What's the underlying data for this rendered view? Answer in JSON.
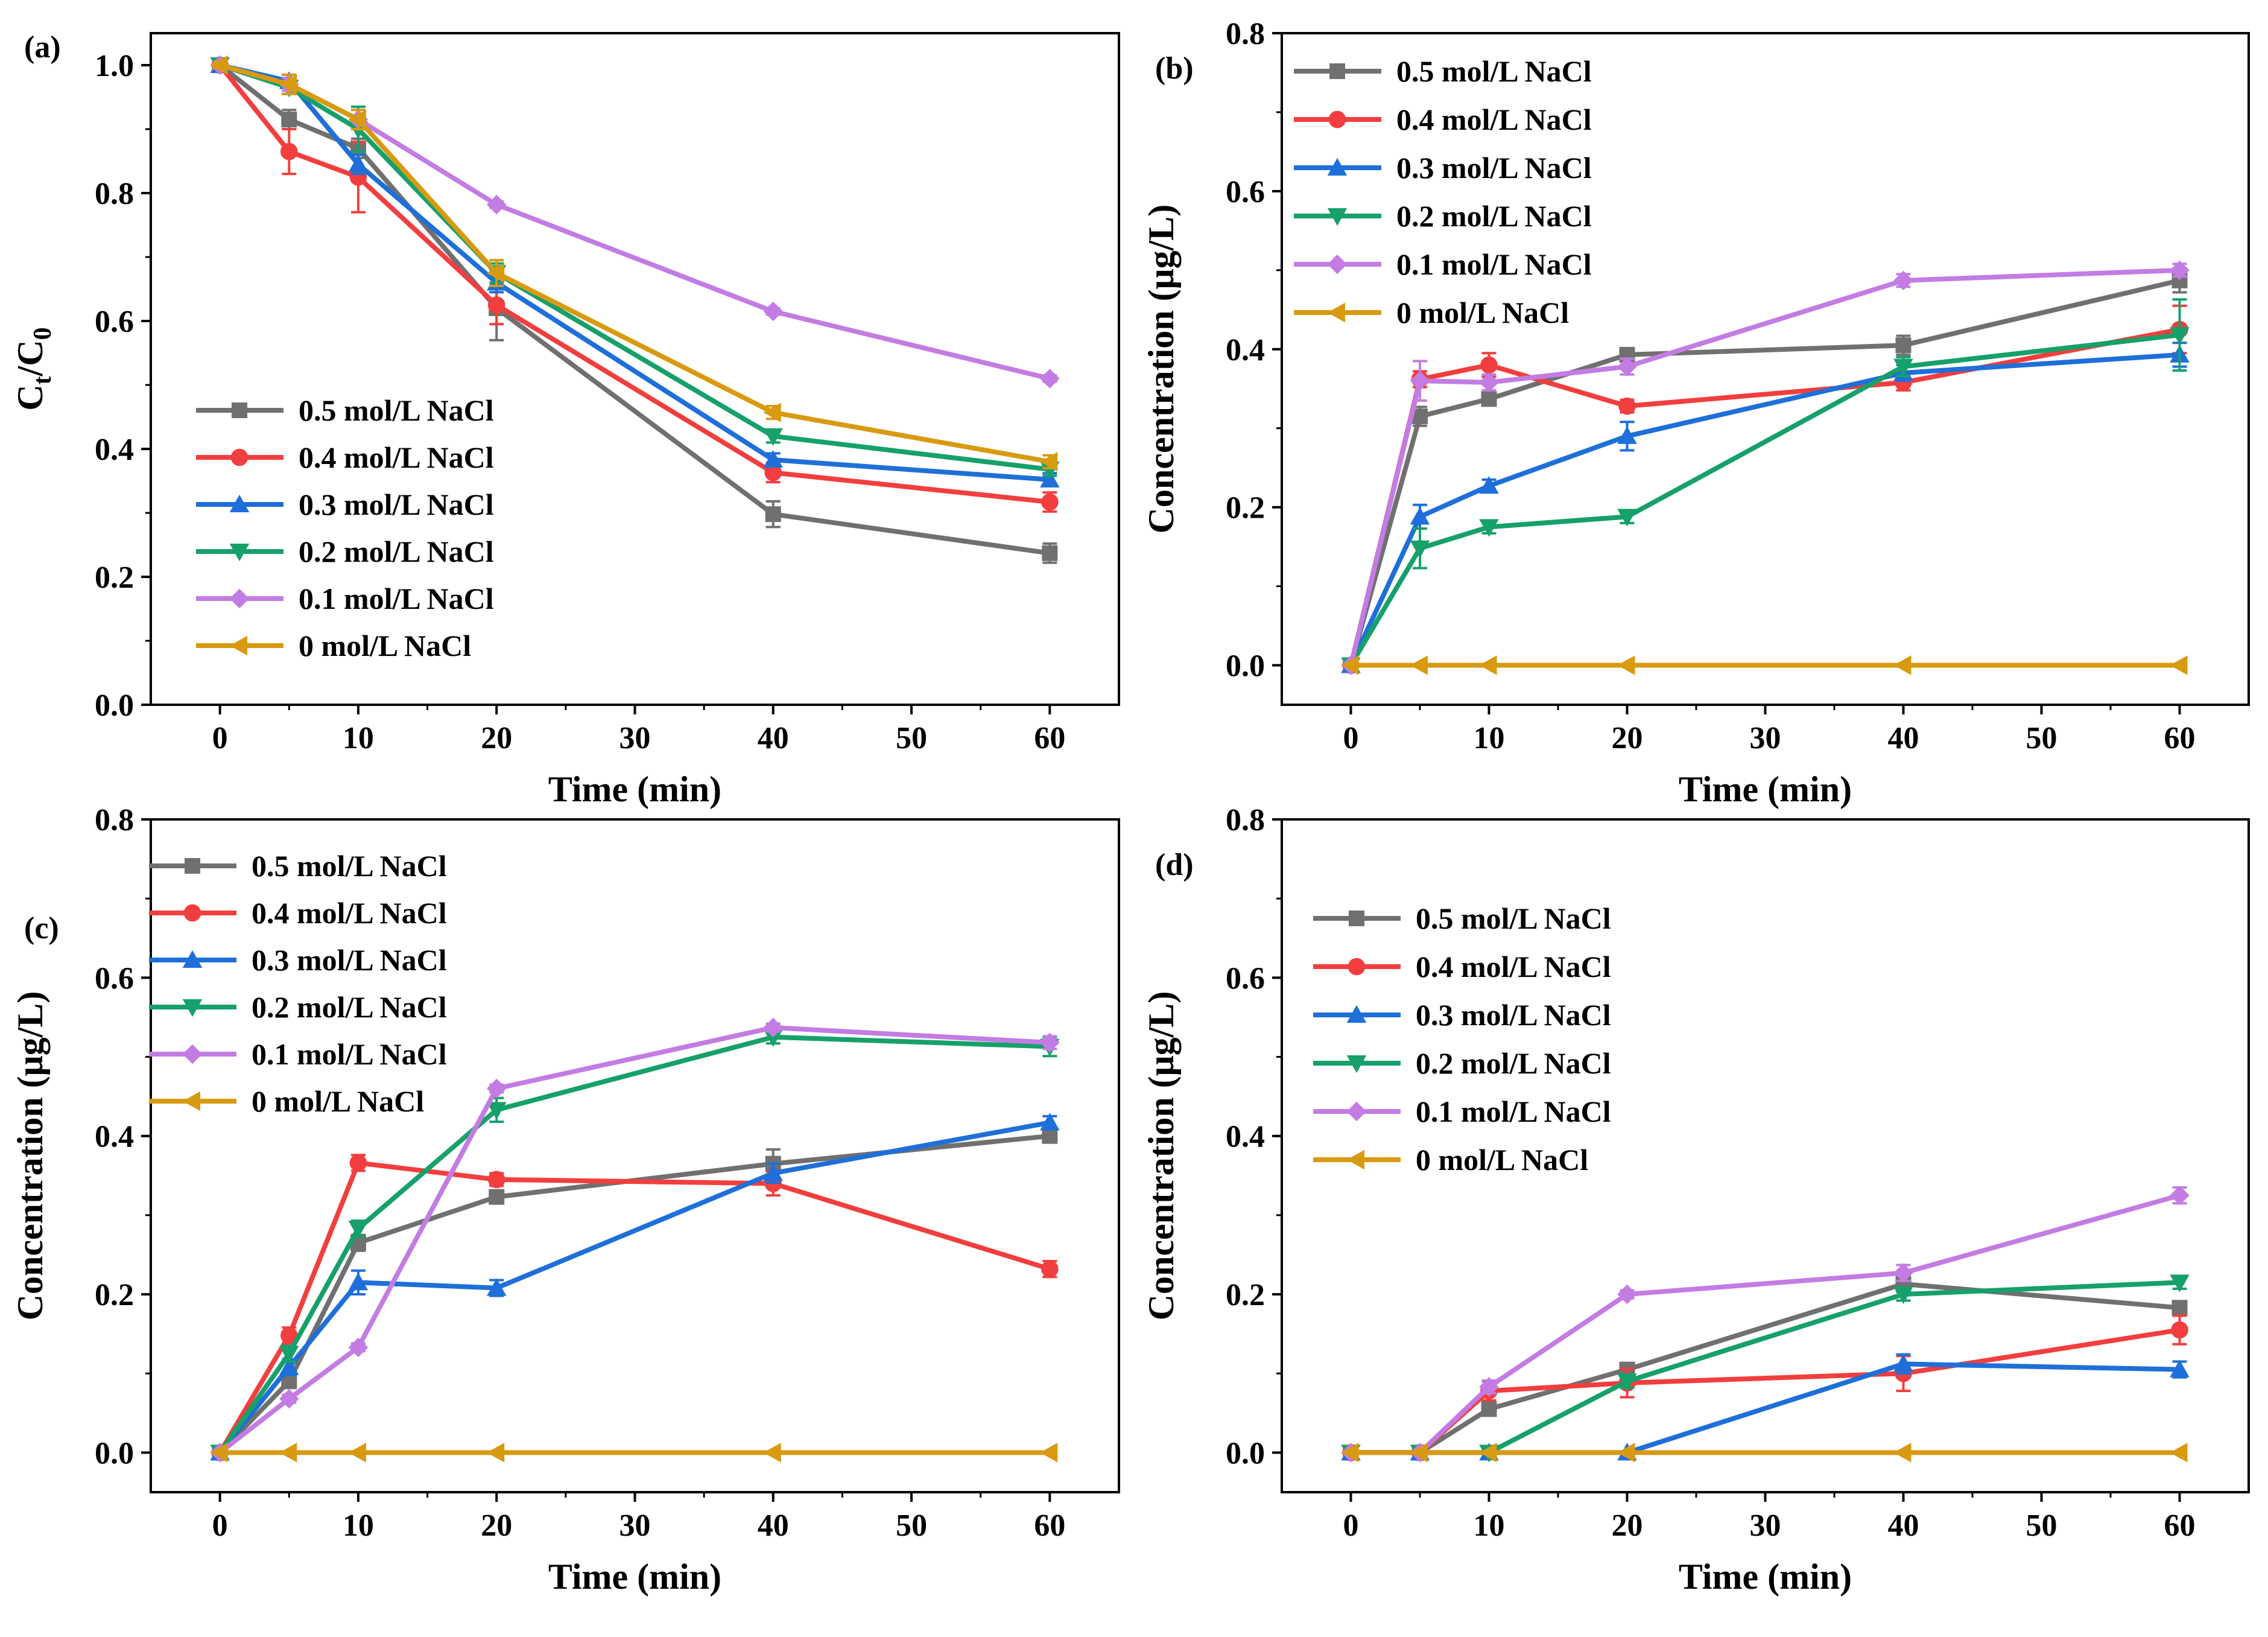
{
  "figure": {
    "colors": {
      "0.5": "#707070",
      "0.4": "#f23e3e",
      "0.3": "#1e6fd9",
      "0.2": "#16a06a",
      "0.1": "#c37ce3",
      "0": "#d89a10"
    }
  },
  "chart_data": [
    {
      "panel": "(a)",
      "type": "line",
      "xlabel": "Time (min)",
      "ylabel_main": "C",
      "ylabel_sub1": "t",
      "ylabel_sep": "/C",
      "ylabel_sub2": "0",
      "xlim": [
        -5,
        65
      ],
      "ylim": [
        0,
        1.05
      ],
      "xticks": [
        0,
        10,
        20,
        30,
        40,
        50,
        60
      ],
      "yticks": [
        0.0,
        0.2,
        0.4,
        0.6,
        0.8,
        1.0
      ],
      "xtick_labels": [
        "0",
        "10",
        "20",
        "30",
        "40",
        "50",
        "60"
      ],
      "ytick_labels": [
        "0.0",
        "0.2",
        "0.4",
        "0.6",
        "0.8",
        "1.0"
      ],
      "legend_position": "lower-left",
      "x": [
        0,
        5,
        10,
        20,
        40,
        60
      ],
      "series": [
        {
          "name": "0.5 mol/L NaCl",
          "key": "0.5",
          "marker": "square",
          "values": [
            1.0,
            0.915,
            0.87,
            0.62,
            0.298,
            0.237
          ],
          "errors": [
            0.005,
            0.015,
            0.015,
            0.05,
            0.02,
            0.015
          ]
        },
        {
          "name": "0.4 mol/L NaCl",
          "key": "0.4",
          "marker": "circle",
          "values": [
            1.0,
            0.865,
            0.825,
            0.625,
            0.363,
            0.317
          ],
          "errors": [
            0.005,
            0.035,
            0.055,
            0.03,
            0.015,
            0.015
          ]
        },
        {
          "name": "0.3 mol/L NaCl",
          "key": "0.3",
          "marker": "triangle-up",
          "values": [
            1.0,
            0.975,
            0.845,
            0.66,
            0.383,
            0.352
          ],
          "errors": [
            0.005,
            0.01,
            0.015,
            0.015,
            0.01,
            0.01
          ]
        },
        {
          "name": "0.2 mol/L NaCl",
          "key": "0.2",
          "marker": "triangle-down",
          "values": [
            1.0,
            0.965,
            0.9,
            0.675,
            0.42,
            0.368
          ],
          "errors": [
            0.005,
            0.01,
            0.035,
            0.015,
            0.01,
            0.01
          ]
        },
        {
          "name": "0.1 mol/L NaCl",
          "key": "0.1",
          "marker": "diamond",
          "values": [
            1.0,
            0.97,
            0.915,
            0.782,
            0.615,
            0.51
          ],
          "errors": [
            0.005,
            0.01,
            0.015,
            0.005,
            0.005,
            0.005
          ]
        },
        {
          "name": "0 mol/L NaCl",
          "key": "0",
          "marker": "triangle-left",
          "values": [
            1.0,
            0.97,
            0.915,
            0.675,
            0.457,
            0.38
          ],
          "errors": [
            0.005,
            0.015,
            0.015,
            0.02,
            0.01,
            0.01
          ]
        }
      ]
    },
    {
      "panel": "(b)",
      "type": "line",
      "xlabel": "Time (min)",
      "ylabel": "Concentration (μg/L)",
      "xlim": [
        -5,
        65
      ],
      "ylim": [
        -0.05,
        0.8
      ],
      "xticks": [
        0,
        10,
        20,
        30,
        40,
        50,
        60
      ],
      "yticks": [
        0.0,
        0.2,
        0.4,
        0.6,
        0.8
      ],
      "xtick_labels": [
        "0",
        "10",
        "20",
        "30",
        "40",
        "50",
        "60"
      ],
      "ytick_labels": [
        "0.0",
        "0.2",
        "0.4",
        "0.6",
        "0.8"
      ],
      "legend_position": "top-left",
      "x": [
        0,
        5,
        10,
        20,
        40,
        60
      ],
      "series": [
        {
          "name": "0.5 mol/L NaCl",
          "key": "0.5",
          "marker": "square",
          "values": [
            0,
            0.315,
            0.337,
            0.393,
            0.405,
            0.487
          ],
          "errors": [
            0,
            0.012,
            0.008,
            0.008,
            0.012,
            0.015
          ]
        },
        {
          "name": "0.4 mol/L NaCl",
          "key": "0.4",
          "marker": "circle",
          "values": [
            0,
            0.362,
            0.38,
            0.328,
            0.358,
            0.425
          ],
          "errors": [
            0,
            0.01,
            0.015,
            0.008,
            0.01,
            0.03
          ]
        },
        {
          "name": "0.3 mol/L NaCl",
          "key": "0.3",
          "marker": "triangle-up",
          "values": [
            0,
            0.188,
            0.227,
            0.29,
            0.37,
            0.393
          ],
          "errors": [
            0,
            0.015,
            0.008,
            0.018,
            0.01,
            0.015
          ]
        },
        {
          "name": "0.2 mol/L NaCl",
          "key": "0.2",
          "marker": "triangle-down",
          "values": [
            0,
            0.148,
            0.175,
            0.188,
            0.378,
            0.418
          ],
          "errors": [
            0,
            0.025,
            0.008,
            0.008,
            0.012,
            0.045
          ]
        },
        {
          "name": "0.1 mol/L NaCl",
          "key": "0.1",
          "marker": "diamond",
          "values": [
            0,
            0.36,
            0.358,
            0.378,
            0.487,
            0.5
          ],
          "errors": [
            0,
            0.025,
            0.01,
            0.01,
            0.008,
            0.008
          ]
        },
        {
          "name": "0 mol/L NaCl",
          "key": "0",
          "marker": "triangle-left",
          "values": [
            0,
            0,
            0,
            0,
            0,
            0
          ],
          "errors": [
            0,
            0,
            0,
            0,
            0,
            0
          ]
        }
      ]
    },
    {
      "panel": "(c)",
      "type": "line",
      "xlabel": "Time (min)",
      "ylabel": "Concentration (μg/L)",
      "xlim": [
        -5,
        65
      ],
      "ylim": [
        -0.05,
        0.8
      ],
      "xticks": [
        0,
        10,
        20,
        30,
        40,
        50,
        60
      ],
      "yticks": [
        0.0,
        0.2,
        0.4,
        0.6,
        0.8
      ],
      "xtick_labels": [
        "0",
        "10",
        "20",
        "30",
        "40",
        "50",
        "60"
      ],
      "ytick_labels": [
        "0.0",
        "0.2",
        "0.4",
        "0.6",
        "0.8"
      ],
      "legend_position": "top-left",
      "x": [
        0,
        5,
        10,
        20,
        40,
        60
      ],
      "series": [
        {
          "name": "0.5 mol/L NaCl",
          "key": "0.5",
          "marker": "square",
          "values": [
            0,
            0.09,
            0.265,
            0.323,
            0.365,
            0.4
          ],
          "errors": [
            0,
            0.008,
            0.01,
            0.008,
            0.018,
            0.008
          ]
        },
        {
          "name": "0.4 mol/L NaCl",
          "key": "0.4",
          "marker": "circle",
          "values": [
            0,
            0.148,
            0.366,
            0.345,
            0.34,
            0.232
          ],
          "errors": [
            0,
            0.01,
            0.01,
            0.008,
            0.015,
            0.01
          ]
        },
        {
          "name": "0.3 mol/L NaCl",
          "key": "0.3",
          "marker": "triangle-up",
          "values": [
            0,
            0.108,
            0.215,
            0.208,
            0.353,
            0.417
          ],
          "errors": [
            0,
            0.01,
            0.015,
            0.01,
            0.012,
            0.008
          ]
        },
        {
          "name": "0.2 mol/L NaCl",
          "key": "0.2",
          "marker": "triangle-down",
          "values": [
            0,
            0.125,
            0.283,
            0.433,
            0.525,
            0.513
          ],
          "errors": [
            0,
            0.01,
            0.01,
            0.015,
            0.008,
            0.012
          ]
        },
        {
          "name": "0.1 mol/L NaCl",
          "key": "0.1",
          "marker": "diamond",
          "values": [
            0,
            0.068,
            0.133,
            0.46,
            0.537,
            0.518
          ],
          "errors": [
            0,
            0.005,
            0.005,
            0.005,
            0.005,
            0.008
          ]
        },
        {
          "name": "0 mol/L NaCl",
          "key": "0",
          "marker": "triangle-left",
          "values": [
            0,
            0,
            0,
            0,
            0,
            0
          ],
          "errors": [
            0,
            0,
            0,
            0,
            0,
            0
          ]
        }
      ]
    },
    {
      "panel": "(d)",
      "type": "line",
      "xlabel": "Time (min)",
      "ylabel": "Concentration (μg/L)",
      "xlim": [
        -5,
        65
      ],
      "ylim": [
        -0.05,
        0.8
      ],
      "xticks": [
        0,
        10,
        20,
        30,
        40,
        50,
        60
      ],
      "yticks": [
        0.0,
        0.2,
        0.4,
        0.6,
        0.8
      ],
      "xtick_labels": [
        "0",
        "10",
        "20",
        "30",
        "40",
        "50",
        "60"
      ],
      "ytick_labels": [
        "0.0",
        "0.2",
        "0.4",
        "0.6",
        "0.8"
      ],
      "legend_position": "top-left",
      "x": [
        0,
        5,
        10,
        20,
        40,
        60
      ],
      "series": [
        {
          "name": "0.5 mol/L NaCl",
          "key": "0.5",
          "marker": "square",
          "values": [
            0,
            0,
            0.055,
            0.105,
            0.213,
            0.183
          ],
          "errors": [
            0,
            0,
            0.008,
            0.008,
            0.01,
            0.008
          ]
        },
        {
          "name": "0.4 mol/L NaCl",
          "key": "0.4",
          "marker": "circle",
          "values": [
            0,
            0,
            0.078,
            0.088,
            0.1,
            0.155
          ],
          "errors": [
            0,
            0,
            0.012,
            0.018,
            0.022,
            0.018
          ]
        },
        {
          "name": "0.3 mol/L NaCl",
          "key": "0.3",
          "marker": "triangle-up",
          "values": [
            0,
            0,
            0,
            0,
            0.112,
            0.105
          ],
          "errors": [
            0,
            0,
            0,
            0,
            0.012,
            0.01
          ]
        },
        {
          "name": "0.2 mol/L NaCl",
          "key": "0.2",
          "marker": "triangle-down",
          "values": [
            0,
            0,
            0,
            0.09,
            0.2,
            0.215
          ],
          "errors": [
            0,
            0,
            0,
            0.008,
            0.008,
            0.008
          ]
        },
        {
          "name": "0.1 mol/L NaCl",
          "key": "0.1",
          "marker": "diamond",
          "values": [
            0,
            0,
            0.083,
            0.2,
            0.227,
            0.325
          ],
          "errors": [
            0,
            0,
            0.008,
            0.005,
            0.01,
            0.01
          ]
        },
        {
          "name": "0 mol/L NaCl",
          "key": "0",
          "marker": "triangle-left",
          "values": [
            0,
            0,
            0,
            0,
            0,
            0
          ],
          "errors": [
            0,
            0,
            0,
            0,
            0,
            0
          ]
        }
      ]
    }
  ]
}
